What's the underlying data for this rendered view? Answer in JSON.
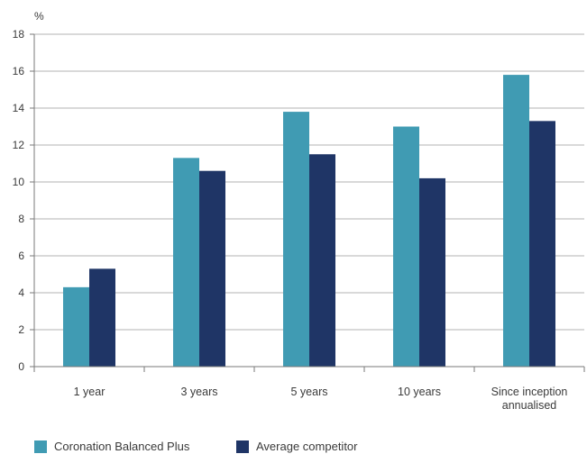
{
  "chart_data": {
    "type": "bar",
    "unit_label": "%",
    "categories": [
      [
        "1 year"
      ],
      [
        "3 years"
      ],
      [
        "5 years"
      ],
      [
        "10 years"
      ],
      [
        "Since inception",
        "annualised"
      ]
    ],
    "series": [
      {
        "name": "Coronation Balanced Plus",
        "color": "#409bb3",
        "values": [
          4.3,
          11.3,
          13.8,
          13.0,
          15.8
        ]
      },
      {
        "name": "Average competitor",
        "color": "#1f3566",
        "values": [
          5.3,
          10.6,
          11.5,
          10.2,
          13.3
        ]
      }
    ],
    "ylim": [
      0,
      18
    ],
    "yticks": [
      0,
      2,
      4,
      6,
      8,
      10,
      12,
      14,
      16,
      18
    ],
    "grid": true,
    "legend_position": "bottom-left"
  }
}
